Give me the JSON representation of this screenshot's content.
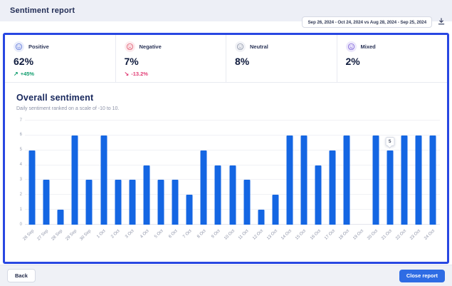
{
  "header": {
    "title": "Sentiment report"
  },
  "toolbar": {
    "date_range": "Sep 26, 2024 - Oct 24, 2024 vs Aug 28, 2024 - Sep 25, 2024",
    "download_icon": "download-icon"
  },
  "cards": [
    {
      "label": "Positive",
      "value": "62%",
      "delta": "+45%",
      "trend": "up",
      "trend_glyph": "↗",
      "icon": "positive-face-icon",
      "icon_color": "#5a73d8",
      "badge_bg": "#e9edfb",
      "delta_color": "#0f9d6d"
    },
    {
      "label": "Negative",
      "value": "7%",
      "delta": "-13.2%",
      "trend": "down",
      "trend_glyph": "↘",
      "icon": "negative-face-icon",
      "icon_color": "#e0556a",
      "badge_bg": "#fcebee",
      "delta_color": "#e23f77"
    },
    {
      "label": "Neutral",
      "value": "8%",
      "icon": "neutral-face-icon",
      "icon_color": "#8e96a8",
      "badge_bg": "#f1f2f6"
    },
    {
      "label": "Mixed",
      "value": "2%",
      "icon": "mixed-face-icon",
      "icon_color": "#7e62d8",
      "badge_bg": "#ece8fb"
    }
  ],
  "chart": {
    "title": "Overall sentiment",
    "subtitle": "Daily sentiment ranked on a scale of -10 to 10."
  },
  "chart_data": {
    "type": "bar",
    "title": "Overall sentiment",
    "subtitle": "Daily sentiment ranked on a scale of -10 to 10.",
    "categories": [
      "26 Sep",
      "27 Sep",
      "28 Sep",
      "29 Sep",
      "30 Sep",
      "1 Oct",
      "2 Oct",
      "3 Oct",
      "4 Oct",
      "5 Oct",
      "6 Oct",
      "7 Oct",
      "8 Oct",
      "9 Oct",
      "10 Oct",
      "11 Oct",
      "12 Oct",
      "13 Oct",
      "14 Oct",
      "15 Oct",
      "16 Oct",
      "17 Oct",
      "18 Oct",
      "19 Oct",
      "20 Oct",
      "21 Oct",
      "22 Oct",
      "23 Oct",
      "24 Oct"
    ],
    "values": [
      5,
      3,
      1,
      6,
      3,
      6,
      3,
      3,
      4,
      3,
      3,
      2,
      5,
      4,
      4,
      3,
      1,
      2,
      6,
      6,
      4,
      5,
      6,
      0,
      6,
      5,
      6,
      6,
      6
    ],
    "xlabel": "",
    "ylabel": "",
    "ylim": [
      0,
      7
    ],
    "yticks": [
      0,
      1,
      2,
      3,
      4,
      5,
      6,
      7
    ],
    "grid": true,
    "legend": false,
    "bar_color": "#1466e3",
    "tooltip": {
      "label": "5",
      "category": "21 Oct"
    }
  },
  "footer": {
    "back_label": "Back",
    "close_label": "Close report"
  },
  "colors": {
    "accent_border": "#2847e2",
    "primary_button": "#2e6ce4",
    "bar": "#1466e3",
    "positive_delta": "#0f9d6d",
    "negative_delta": "#e23f77",
    "topbar_bg": "#edeff6",
    "footer_bg": "#eff1f6"
  }
}
